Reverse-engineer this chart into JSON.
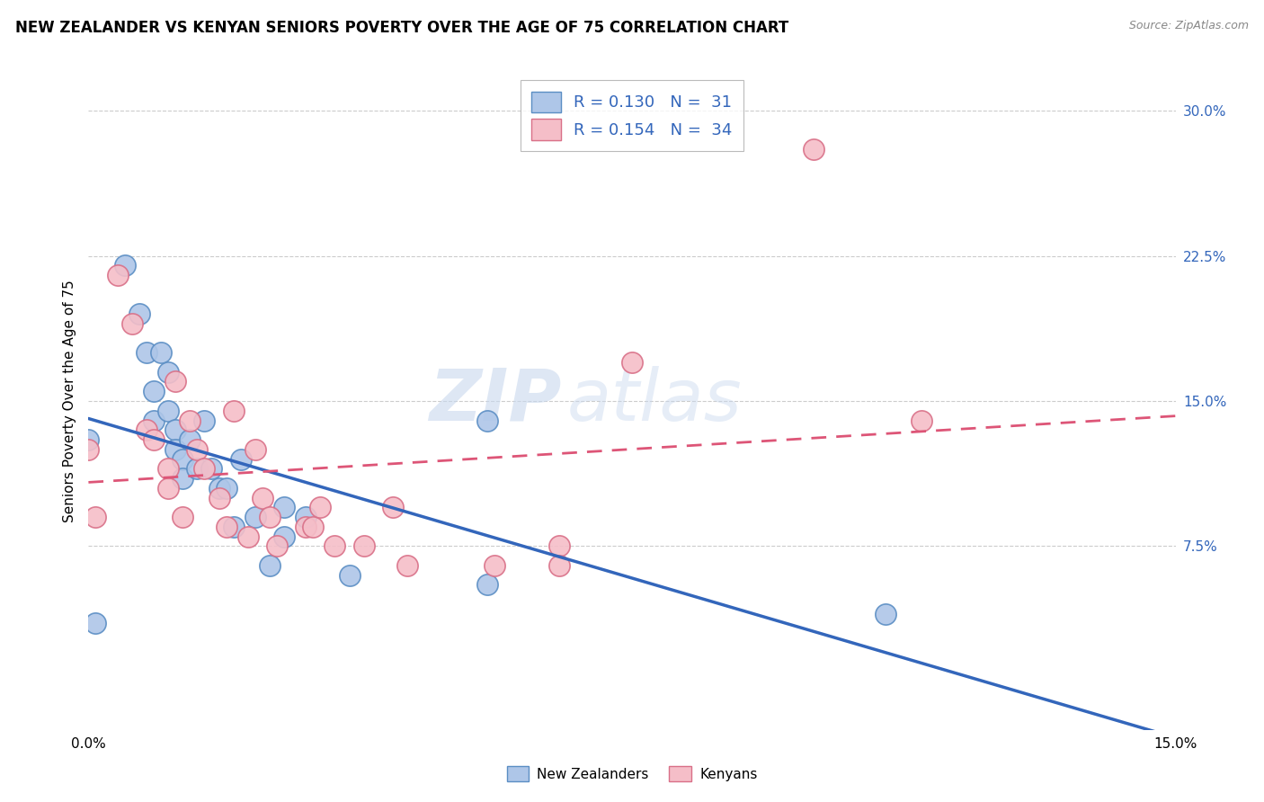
{
  "title": "NEW ZEALANDER VS KENYAN SENIORS POVERTY OVER THE AGE OF 75 CORRELATION CHART",
  "source": "Source: ZipAtlas.com",
  "ylabel": "Seniors Poverty Over the Age of 75",
  "xlim": [
    0.0,
    0.15
  ],
  "ylim": [
    -0.02,
    0.32
  ],
  "ytick_labels_right": [
    "7.5%",
    "15.0%",
    "22.5%",
    "30.0%"
  ],
  "ytick_values_right": [
    0.075,
    0.15,
    0.225,
    0.3
  ],
  "legend_r1": "0.130",
  "legend_n1": "31",
  "legend_r2": "0.154",
  "legend_n2": "34",
  "nz_color": "#aec6e8",
  "nz_edge_color": "#5b8ec4",
  "kenyan_color": "#f5bec8",
  "kenyan_edge_color": "#d97088",
  "trend_nz_color": "#3366bb",
  "trend_kenyan_color": "#dd5577",
  "legend_r_color": "#3366bb",
  "legend_box_nz": "#aec6e8",
  "legend_box_kenyan": "#f5bec8",
  "nz_points_x": [
    0.001,
    0.005,
    0.007,
    0.008,
    0.009,
    0.009,
    0.01,
    0.011,
    0.011,
    0.012,
    0.012,
    0.013,
    0.013,
    0.014,
    0.015,
    0.016,
    0.017,
    0.018,
    0.019,
    0.02,
    0.021,
    0.023,
    0.025,
    0.027,
    0.027,
    0.03,
    0.036,
    0.055,
    0.055,
    0.11,
    0.0
  ],
  "nz_points_y": [
    0.035,
    0.22,
    0.195,
    0.175,
    0.155,
    0.14,
    0.175,
    0.145,
    0.165,
    0.135,
    0.125,
    0.12,
    0.11,
    0.13,
    0.115,
    0.14,
    0.115,
    0.105,
    0.105,
    0.085,
    0.12,
    0.09,
    0.065,
    0.095,
    0.08,
    0.09,
    0.06,
    0.14,
    0.055,
    0.04,
    0.13
  ],
  "kenyan_points_x": [
    0.0,
    0.001,
    0.004,
    0.006,
    0.008,
    0.009,
    0.011,
    0.011,
    0.012,
    0.013,
    0.014,
    0.015,
    0.016,
    0.018,
    0.019,
    0.02,
    0.022,
    0.023,
    0.024,
    0.025,
    0.026,
    0.03,
    0.031,
    0.032,
    0.034,
    0.038,
    0.042,
    0.044,
    0.056,
    0.065,
    0.065,
    0.075,
    0.1,
    0.115
  ],
  "kenyan_points_y": [
    0.125,
    0.09,
    0.215,
    0.19,
    0.135,
    0.13,
    0.115,
    0.105,
    0.16,
    0.09,
    0.14,
    0.125,
    0.115,
    0.1,
    0.085,
    0.145,
    0.08,
    0.125,
    0.1,
    0.09,
    0.075,
    0.085,
    0.085,
    0.095,
    0.075,
    0.075,
    0.095,
    0.065,
    0.065,
    0.075,
    0.065,
    0.17,
    0.28,
    0.14
  ],
  "background_color": "#ffffff",
  "grid_color": "#cccccc",
  "title_fontsize": 12,
  "axis_fontsize": 11,
  "tick_fontsize": 11
}
